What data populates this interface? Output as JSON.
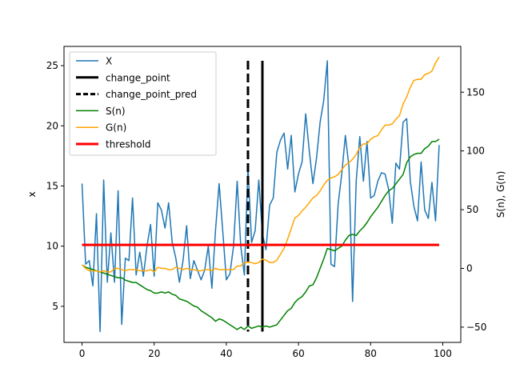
{
  "chart_data": {
    "type": "line",
    "title": "",
    "xlabel": "",
    "ylabel": "x",
    "ylabel_right": "S(n), G(n)",
    "xlim": [
      -5,
      105
    ],
    "ylim": [
      2.0,
      26.6
    ],
    "ylim_right": [
      -63,
      189
    ],
    "x_ticks": [
      0,
      20,
      40,
      60,
      80,
      100
    ],
    "y_ticks": [
      5,
      10,
      15,
      20,
      25
    ],
    "y_ticks_right": [
      -50,
      0,
      50,
      100,
      150
    ],
    "legend_position": "upper-left",
    "colors": {
      "x": "#1f77b4",
      "change_point": "#000000",
      "change_point_pred": "#000000",
      "s": "#008000",
      "g": "#ffa500",
      "threshold": "#ff0000"
    },
    "legend": [
      "X",
      "change_point",
      "change_point_pred",
      "S(n)",
      "G(n)",
      "threshold"
    ],
    "change_point": 50,
    "change_point_pred": 46,
    "threshold": 20,
    "series": [
      {
        "name": "X",
        "axis": "left",
        "values": [
          15.2,
          8.5,
          8.8,
          6.7,
          12.7,
          2.9,
          15.5,
          7.0,
          11.1,
          7.0,
          14.6,
          3.5,
          9.0,
          8.8,
          14.0,
          7.6,
          9.5,
          7.5,
          10.0,
          11.8,
          7.5,
          13.6,
          13.0,
          11.5,
          13.6,
          10.3,
          9.0,
          7.0,
          8.8,
          11.7,
          7.3,
          8.8,
          8.0,
          7.2,
          8.0,
          10.0,
          6.5,
          11.3,
          15.2,
          11.3,
          7.2,
          7.7,
          10.0,
          15.4,
          10.0,
          7.6,
          16.6,
          10.3,
          11.3,
          15.5,
          11.0,
          9.7,
          13.4,
          14.0,
          17.8,
          18.8,
          19.4,
          16.4,
          19.2,
          14.5,
          16.0,
          17.0,
          21.0,
          17.9,
          15.2,
          17.3,
          20.3,
          22.1,
          25.4,
          8.5,
          8.3,
          13.5,
          16.0,
          19.2,
          16.6,
          5.4,
          15.4,
          19.1,
          15.4,
          18.7,
          14.0,
          14.2,
          15.4,
          16.1,
          16.0,
          14.7,
          11.9,
          16.9,
          16.4,
          20.3,
          20.6,
          15.4,
          13.3,
          12.1,
          17.0,
          13.0,
          12.3,
          15.3,
          12.1,
          18.4
        ]
      },
      {
        "name": "S(n)",
        "axis": "right",
        "values": [
          3,
          1,
          0,
          -1,
          -2,
          -3,
          -4,
          -5,
          -6,
          -7,
          -8,
          -8,
          -10,
          -11,
          -12,
          -12,
          -14,
          -16,
          -18,
          -19,
          -21,
          -21,
          -20,
          -21,
          -20,
          -22,
          -23,
          -26,
          -27,
          -28,
          -30,
          -32,
          -33,
          -36,
          -38,
          -40,
          -42,
          -45,
          -43,
          -44,
          -46,
          -48,
          -50,
          -52,
          -50,
          -52,
          -49,
          -51,
          -50,
          -49,
          -50,
          -49,
          -50,
          -49,
          -48,
          -44,
          -40,
          -36,
          -34,
          -29,
          -26,
          -24,
          -20,
          -15,
          -14,
          -8,
          0,
          8,
          17,
          16,
          15,
          17,
          19,
          24,
          28,
          29,
          28,
          32,
          35,
          39,
          44,
          48,
          52,
          57,
          62,
          66,
          68,
          72,
          76,
          80,
          90,
          95,
          97,
          98,
          98,
          102,
          104,
          108,
          108,
          110
        ]
      },
      {
        "name": "G(n)",
        "axis": "right",
        "values": [
          3,
          0,
          -2,
          -2,
          -2,
          -3,
          -2,
          -3,
          -3,
          0,
          0,
          -1,
          -2,
          -1,
          -1,
          -1,
          -2,
          -2,
          -2,
          -1,
          -3,
          1,
          0,
          0,
          -1,
          -1,
          1,
          0,
          -1,
          0,
          -1,
          -1,
          -2,
          -2,
          -1,
          -1,
          -2,
          0,
          -1,
          -1,
          -1,
          -1,
          -1,
          2,
          2,
          5,
          5,
          5,
          4,
          5,
          8,
          7,
          5,
          5,
          7,
          12,
          17,
          25,
          34,
          43,
          45,
          49,
          52,
          56,
          60,
          62,
          66,
          71,
          75,
          77,
          78,
          80,
          84,
          88,
          90,
          93,
          97,
          103,
          106,
          106,
          110,
          112,
          113,
          118,
          122,
          122,
          123,
          127,
          130,
          140,
          146,
          154,
          160,
          161,
          161,
          165,
          166,
          168,
          175,
          180
        ]
      }
    ]
  }
}
